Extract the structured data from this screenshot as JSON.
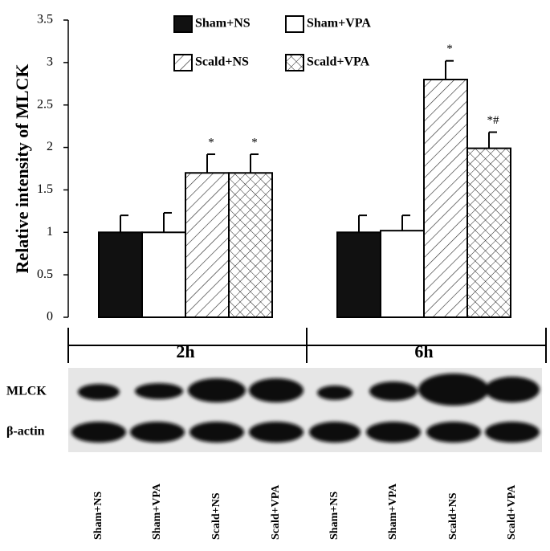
{
  "chart_data": {
    "type": "bar",
    "y_label": "Relative intensity of MLCK",
    "categories": [
      "2h",
      "6h"
    ],
    "ylim": [
      0,
      3.5
    ],
    "yticks": [
      0,
      0.5,
      1,
      1.5,
      2,
      2.5,
      3,
      3.5
    ],
    "series": [
      {
        "name": "Sham+NS",
        "color": "#111111",
        "pattern": "solid",
        "values": [
          1.0,
          1.0
        ],
        "errors": [
          0.2,
          0.2
        ]
      },
      {
        "name": "Sham+VPA",
        "color": "#ffffff",
        "pattern": "solid",
        "values": [
          1.0,
          1.02
        ],
        "errors": [
          0.23,
          0.18
        ]
      },
      {
        "name": "Scald+NS",
        "color": "#ffffff",
        "pattern": "hatch",
        "values": [
          1.7,
          2.8
        ],
        "errors": [
          0.22,
          0.22
        ],
        "significance": [
          "*",
          "*"
        ]
      },
      {
        "name": "Scald+VPA",
        "color": "#ffffff",
        "pattern": "crosshatch",
        "values": [
          1.7,
          1.99
        ],
        "errors": [
          0.22,
          0.19
        ],
        "significance": [
          "*",
          "*#"
        ]
      }
    ],
    "blot_rows": [
      "MLCK",
      "β-actin"
    ],
    "lanes": [
      "Sham+NS",
      "Sham+VPA",
      "Scald+NS",
      "Scald+VPA",
      "Sham+NS",
      "Sham+VPA",
      "Scald+NS",
      "Scald+VPA"
    ]
  }
}
